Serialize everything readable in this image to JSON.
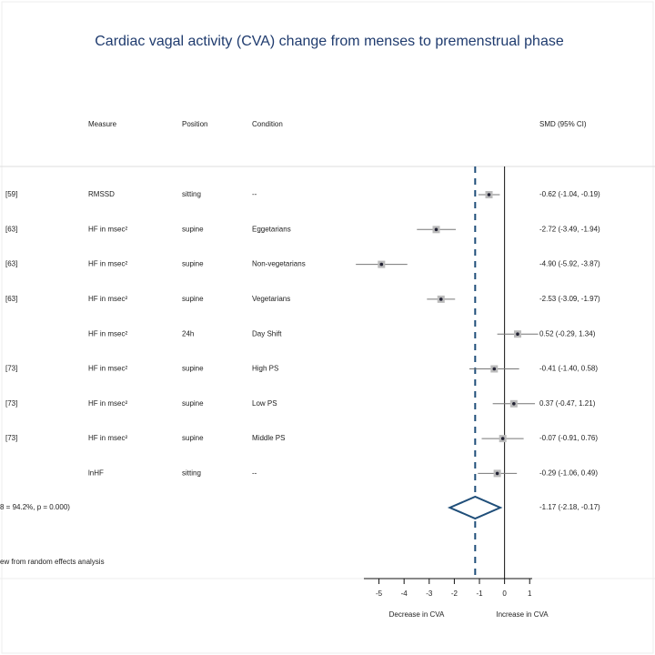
{
  "chart_data": {
    "type": "forest",
    "title": "Cardiac vagal activity (CVA) change from menses to premenstrual phase",
    "headers": {
      "measure": "Measure",
      "position": "Position",
      "condition": "Condition",
      "estimate": "SMD (95% CI)"
    },
    "studies": [
      "[59]",
      "[63]",
      "[63]",
      "[63]",
      null,
      "[73]",
      "[73]",
      "[73]",
      null
    ],
    "measures": [
      "RMSSD",
      "HF in msec²",
      "HF in msec²",
      "HF in msec²",
      "HF in msec²",
      "HF in msec²",
      "HF in msec²",
      "HF in msec²",
      "lnHF"
    ],
    "positions": [
      "sitting",
      "supine",
      "supine",
      "supine",
      "24h",
      "supine",
      "supine",
      "supine",
      "sitting"
    ],
    "conditions": [
      "--",
      "Eggetarians",
      "Non-vegetarians",
      "Vegetarians",
      "Day Shift",
      "High PS",
      "Low PS",
      "Middle PS",
      "--"
    ],
    "values": [
      -0.62,
      -2.72,
      -4.9,
      -2.53,
      0.52,
      -0.41,
      0.37,
      -0.07,
      -0.29
    ],
    "lower": [
      -1.04,
      -3.49,
      -5.92,
      -3.09,
      -0.29,
      -1.4,
      -0.47,
      -0.91,
      -1.06
    ],
    "upper": [
      -0.19,
      -1.94,
      -3.87,
      -1.97,
      1.34,
      0.58,
      1.21,
      0.76,
      0.49
    ],
    "value_labels": [
      "-0.62 (-1.04, -0.19)",
      "-2.72 (-3.49, -1.94)",
      "-4.90 (-5.92, -3.87)",
      "-2.53 (-3.09, -1.97)",
      "0.52 (-0.29, 1.34)",
      "-0.41 (-1.40, 0.58)",
      "0.37 (-0.47, 1.21)",
      "-0.07 (-0.91, 0.76)",
      "-0.29 (-1.06, 0.49)"
    ],
    "overall": {
      "label": "8 = 94.2%, p = 0.000)",
      "value": -1.17,
      "lower": -2.18,
      "upper": -0.17,
      "value_label": "-1.17 (-2.18, -0.17)"
    },
    "note": "ew from random effects analysis",
    "xlim": [
      -5.6,
      1.1
    ],
    "xticks": [
      -5,
      -4,
      -3,
      -2,
      -1,
      0,
      1
    ],
    "left_label": "Decrease in CVA",
    "right_label": "Increase in CVA",
    "color": "#1f4e79"
  }
}
